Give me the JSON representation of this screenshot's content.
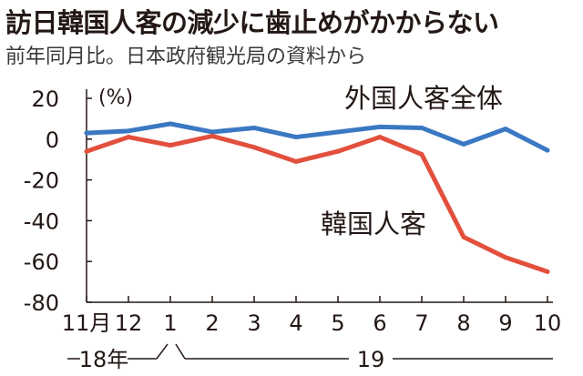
{
  "title": "訪日韓国人客の減少に歯止めがかからない",
  "subtitle": "前年同月比。日本政府観光局の資料から",
  "chart_data": {
    "type": "line",
    "unit_label": "(%)",
    "categories": [
      "11月",
      "12",
      "1",
      "2",
      "3",
      "4",
      "5",
      "6",
      "7",
      "8",
      "9",
      "10"
    ],
    "year_labels": [
      {
        "label": "18年",
        "from": 0,
        "to": 1
      },
      {
        "label": "19",
        "from": 2,
        "to": 11
      }
    ],
    "ylim": [
      -80,
      20
    ],
    "yticks": [
      20,
      0,
      -20,
      -40,
      -60,
      -80
    ],
    "grid": false,
    "series": [
      {
        "name": "外国人客全体",
        "color": "#3a78c3",
        "values": [
          3,
          4,
          7.5,
          3.5,
          5.5,
          1,
          3.5,
          6,
          5.5,
          -2.5,
          5,
          -5.5
        ]
      },
      {
        "name": "韓国人客",
        "color": "#e2503d",
        "values": [
          -6,
          1,
          -3,
          1.5,
          -4,
          -11,
          -6,
          1,
          -7.5,
          -48,
          -58,
          -65
        ]
      }
    ]
  }
}
